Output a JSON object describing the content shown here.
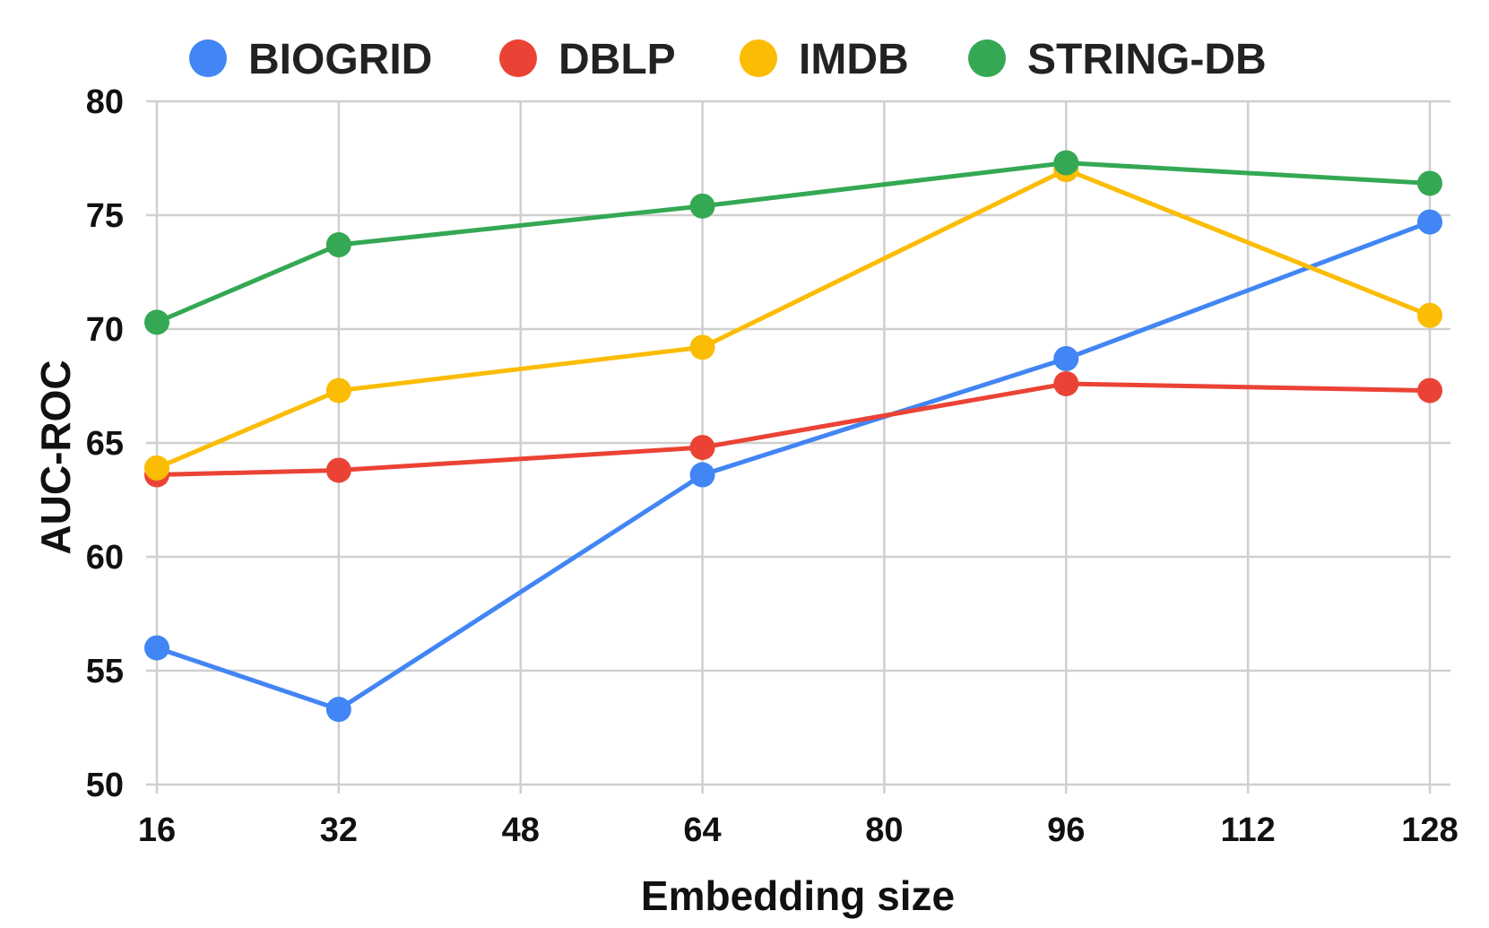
{
  "chart_data": {
    "type": "line",
    "title": "",
    "xlabel": "Embedding size",
    "ylabel": "AUC-ROC",
    "xlim": [
      16,
      128
    ],
    "ylim": [
      50,
      80
    ],
    "xticks": [
      16,
      32,
      48,
      64,
      80,
      96,
      112,
      128
    ],
    "yticks": [
      50,
      55,
      60,
      65,
      70,
      75,
      80
    ],
    "grid": true,
    "legend_position": "top",
    "x": [
      16,
      32,
      64,
      96,
      128
    ],
    "series": [
      {
        "name": "BIOGRID",
        "color": "#4285F4",
        "values": [
          56.0,
          53.3,
          63.6,
          68.7,
          74.7
        ]
      },
      {
        "name": "DBLP",
        "color": "#EA4335",
        "values": [
          63.6,
          63.8,
          64.8,
          67.6,
          67.3
        ]
      },
      {
        "name": "IMDB",
        "color": "#FBBC04",
        "values": [
          63.9,
          67.3,
          69.2,
          77.0,
          70.6
        ]
      },
      {
        "name": "STRING-DB",
        "color": "#34A853",
        "values": [
          70.3,
          73.7,
          75.4,
          77.3,
          76.4
        ]
      }
    ]
  }
}
